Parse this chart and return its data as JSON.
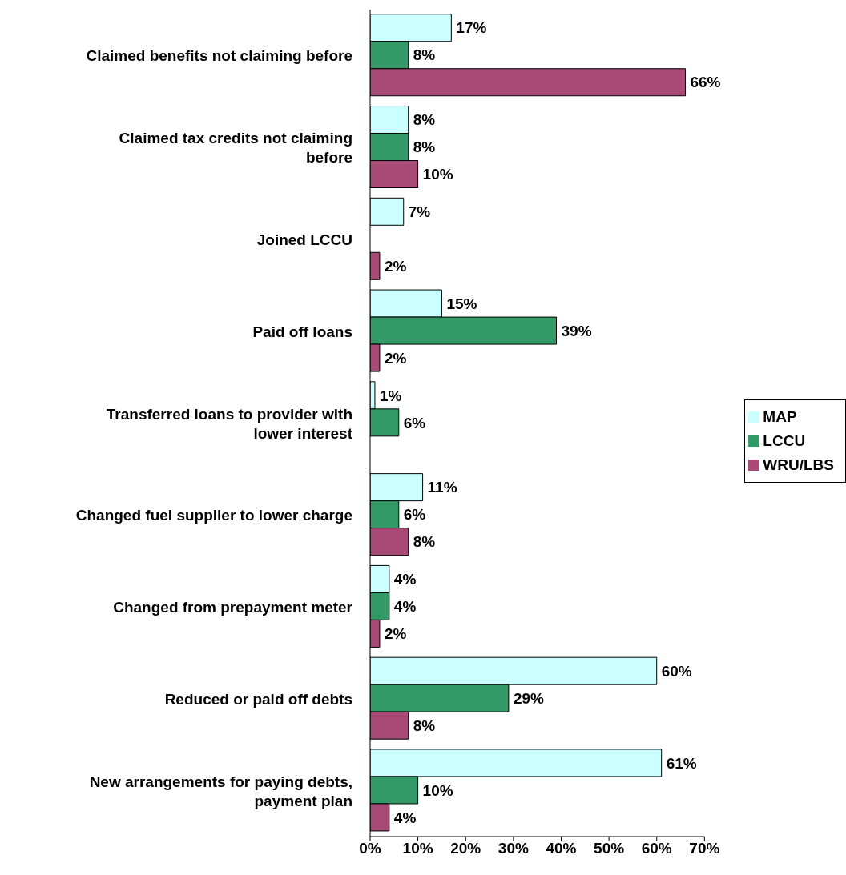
{
  "chart_data": {
    "type": "bar",
    "orientation": "horizontal",
    "categories": [
      "Claimed benefits not claiming before",
      "Claimed tax credits not claiming before",
      "Joined LCCU",
      "Paid off loans",
      "Transferred loans to provider with lower interest",
      "Changed fuel supplier to lower charge",
      "Changed from prepayment meter",
      "Reduced or paid off debts",
      "New arrangements for paying debts, payment plan"
    ],
    "series": [
      {
        "name": "MAP",
        "color": "#ccffff",
        "values": [
          17,
          8,
          7,
          15,
          1,
          11,
          4,
          60,
          61
        ],
        "value_labels": [
          "17%",
          "8%",
          "7%",
          "15%",
          "1%",
          "11%",
          "4%",
          "60%",
          "61%"
        ]
      },
      {
        "name": "LCCU",
        "color": "#339966",
        "values": [
          8,
          8,
          null,
          39,
          6,
          6,
          4,
          29,
          10
        ],
        "value_labels": [
          "8%",
          "8%",
          null,
          "39%",
          "6%",
          "6%",
          "4%",
          "29%",
          "10%"
        ]
      },
      {
        "name": "WRU/LBS",
        "color": "#a84a75",
        "values": [
          66,
          10,
          2,
          2,
          null,
          8,
          2,
          8,
          4
        ],
        "value_labels": [
          "66%",
          "10%",
          "2%",
          "2%",
          null,
          "8%",
          "2%",
          "8%",
          "4%"
        ]
      }
    ],
    "xlim": [
      0,
      70
    ],
    "xticks": [
      {
        "value": 0,
        "label": "0%"
      },
      {
        "value": 10,
        "label": "10%"
      },
      {
        "value": 20,
        "label": "20%"
      },
      {
        "value": 30,
        "label": "30%"
      },
      {
        "value": 40,
        "label": "40%"
      },
      {
        "value": 50,
        "label": "50%"
      },
      {
        "value": 60,
        "label": "60%"
      },
      {
        "value": 70,
        "label": "70%"
      }
    ],
    "grid": false,
    "legend": "right"
  }
}
